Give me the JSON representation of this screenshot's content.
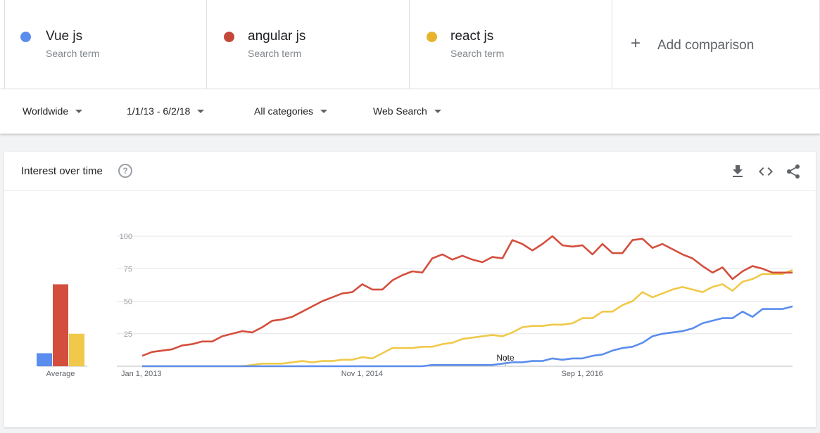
{
  "terms": [
    {
      "name": "Vue js",
      "sub": "Search term",
      "color": "#5a8ded"
    },
    {
      "name": "angular js",
      "sub": "Search term",
      "color": "#c4483a"
    },
    {
      "name": "react js",
      "sub": "Search term",
      "color": "#e8b42d"
    }
  ],
  "add_comparison": "Add comparison",
  "filters": {
    "region": "Worldwide",
    "date": "1/1/13 - 6/2/18",
    "category": "All categories",
    "search_type": "Web Search"
  },
  "card": {
    "title": "Interest over time",
    "help": "?"
  },
  "icons": [
    "help-icon",
    "download-icon",
    "embed-code-icon",
    "share-icon"
  ],
  "note_label": "Note",
  "average_label": "Average",
  "chart_data": {
    "type": "line",
    "x_tick_labels": [
      "Jan 1, 2013",
      "Nov 1, 2014",
      "Sep 1, 2016"
    ],
    "x_tick_months": [
      0,
      22,
      44
    ],
    "x_range_months": [
      0,
      65
    ],
    "y_ticks": [
      25,
      50,
      75,
      100
    ],
    "ylim": [
      0,
      100
    ],
    "grid": true,
    "x_months": [
      0,
      1,
      2,
      3,
      4,
      5,
      6,
      7,
      8,
      9,
      10,
      11,
      12,
      13,
      14,
      15,
      16,
      17,
      18,
      19,
      20,
      21,
      22,
      23,
      24,
      25,
      26,
      27,
      28,
      29,
      30,
      31,
      32,
      33,
      34,
      35,
      36,
      37,
      38,
      39,
      40,
      41,
      42,
      43,
      44,
      45,
      46,
      47,
      48,
      49,
      50,
      51,
      52,
      53,
      54,
      55,
      56,
      57,
      58,
      59,
      60,
      61,
      62,
      63,
      64,
      65
    ],
    "series": [
      {
        "name": "Vue js",
        "color": "#5a8ded",
        "average": 10,
        "values": [
          0,
          0,
          0,
          0,
          0,
          0,
          0,
          0,
          0,
          0,
          0,
          0,
          0,
          0,
          0,
          0,
          0,
          0,
          0,
          0,
          0,
          0,
          0,
          0,
          0,
          0,
          0,
          0,
          0,
          1,
          1,
          1,
          1,
          1,
          1,
          1,
          2,
          3,
          3,
          4,
          4,
          6,
          5,
          6,
          6,
          8,
          9,
          12,
          14,
          15,
          18,
          23,
          25,
          26,
          27,
          29,
          33,
          35,
          37,
          37,
          42,
          38,
          44,
          44,
          44,
          46
        ]
      },
      {
        "name": "angular js",
        "color": "#d44e3d",
        "average": 63,
        "values": [
          8,
          11,
          12,
          13,
          16,
          17,
          19,
          19,
          23,
          25,
          27,
          26,
          30,
          35,
          36,
          38,
          42,
          46,
          50,
          53,
          56,
          57,
          63,
          59,
          59,
          66,
          70,
          73,
          72,
          83,
          86,
          82,
          85,
          82,
          80,
          84,
          83,
          97,
          94,
          89,
          94,
          100,
          93,
          92,
          93,
          86,
          94,
          87,
          87,
          97,
          98,
          91,
          94,
          90,
          86,
          83,
          77,
          72,
          76,
          67,
          73,
          77,
          75,
          72,
          72,
          72
        ]
      },
      {
        "name": "react js",
        "color": "#f0c94a",
        "average": 25,
        "values": [
          0,
          0,
          0,
          0,
          0,
          0,
          0,
          0,
          0,
          0,
          0,
          1,
          2,
          2,
          2,
          3,
          4,
          3,
          4,
          4,
          5,
          5,
          7,
          6,
          10,
          14,
          14,
          14,
          15,
          15,
          17,
          18,
          21,
          22,
          23,
          24,
          23,
          26,
          30,
          31,
          31,
          32,
          32,
          33,
          37,
          37,
          42,
          42,
          47,
          50,
          57,
          53,
          56,
          59,
          61,
          59,
          57,
          61,
          63,
          58,
          65,
          67,
          71,
          71,
          71,
          74
        ]
      }
    ]
  }
}
